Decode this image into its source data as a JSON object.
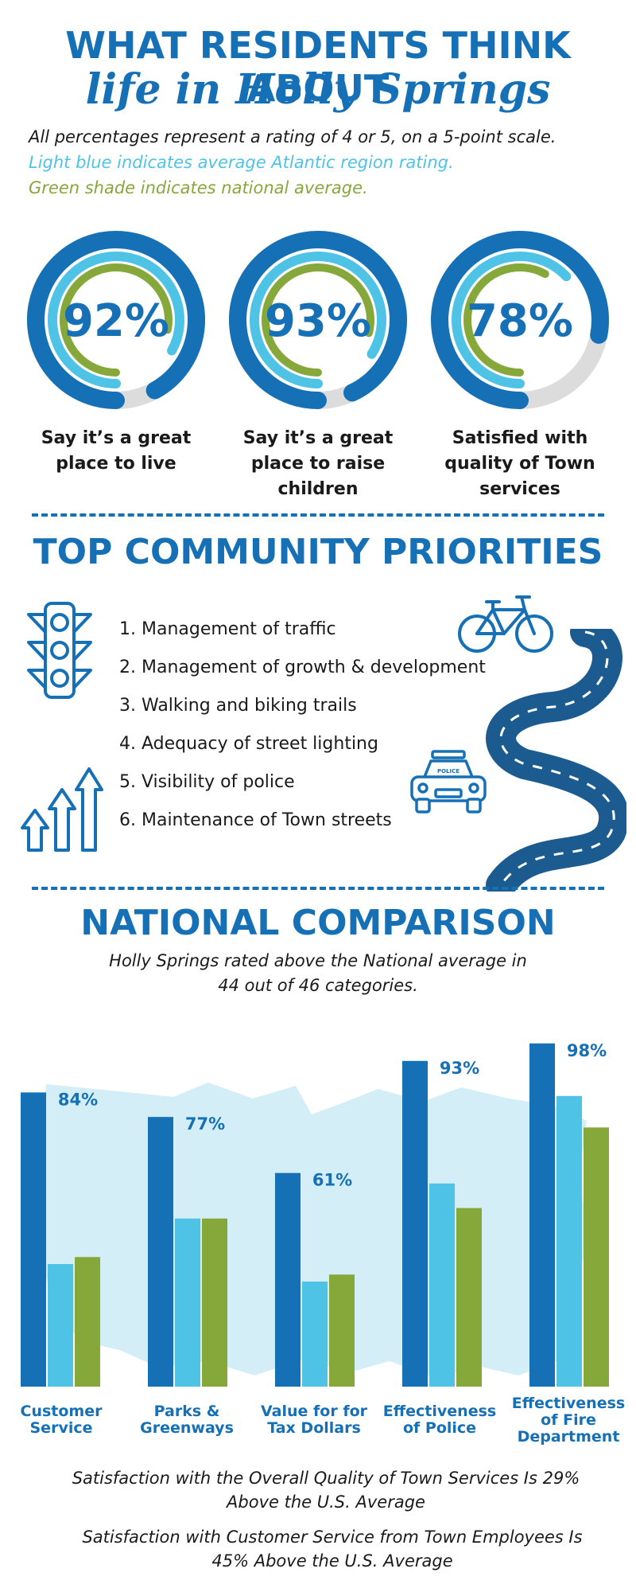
{
  "header": {
    "title_line1": "WHAT RESIDENTS THINK ABOUT",
    "title_line2": "life in Holly Springs",
    "note1": "All percentages represent a rating of 4 or 5, on a 5-point scale.",
    "note2": "Light blue indicates average Atlantic region rating.",
    "note3": "Green shade indicates national average."
  },
  "colors": {
    "primary": "#1670b6",
    "atlantic": "#4fc3e6",
    "national": "#86a83a",
    "track": "#dcdcdc",
    "map": "#d4eef8"
  },
  "donuts": [
    {
      "value_label": "92%",
      "holly": 92,
      "atlantic": 83,
      "national": 78,
      "caption_lines": [
        "Say it’s a great",
        "place to live"
      ]
    },
    {
      "value_label": "93%",
      "holly": 93,
      "atlantic": 84,
      "national": 79,
      "caption_lines": [
        "Say it’s a great",
        "place to raise",
        "children"
      ]
    },
    {
      "value_label": "78%",
      "holly": 78,
      "atlantic": 63,
      "national": 58,
      "caption_lines": [
        "Satisfied with",
        "quality of Town",
        "services"
      ]
    }
  ],
  "priorities": {
    "title": "TOP COMMUNITY PRIORITIES",
    "items": [
      "1. Management of traffic",
      "2. Management of growth & development",
      "3. Walking and biking trails",
      "4. Adequacy of street lighting",
      "5. Visibility of police",
      "6. Maintenance of Town streets"
    ],
    "police_car_text": "POLICE"
  },
  "comparison": {
    "title": "NATIONAL COMPARISON",
    "subtitle_lines": [
      "Holly Springs rated above the National average in",
      "44 out of 46 categories."
    ]
  },
  "chart_data": {
    "type": "bar",
    "categories": [
      [
        "Customer",
        "Service"
      ],
      [
        "Parks &",
        "Greenways"
      ],
      [
        "Value for for",
        "Tax Dollars"
      ],
      [
        "Effectiveness",
        "of Police"
      ],
      [
        "Effectiveness",
        "of Fire",
        "Department"
      ]
    ],
    "series": [
      {
        "values": [
          84,
          77,
          61,
          93,
          98
        ],
        "labels": [
          "84%",
          "77%",
          "61%",
          "93%",
          "98%"
        ]
      },
      {
        "values": [
          35,
          48,
          30,
          58,
          83
        ]
      },
      {
        "values": [
          37,
          48,
          32,
          51,
          74
        ]
      }
    ],
    "ylim": [
      0,
      100
    ],
    "legend": "none",
    "grid": false
  },
  "footer": {
    "note1": [
      "Satisfaction with the Overall Quality of Town Services Is 29%",
      "Above the U.S. Average"
    ],
    "note2": [
      "Satisfaction with Customer Service from Town Employees Is",
      "45% Above the U.S. Average"
    ]
  }
}
